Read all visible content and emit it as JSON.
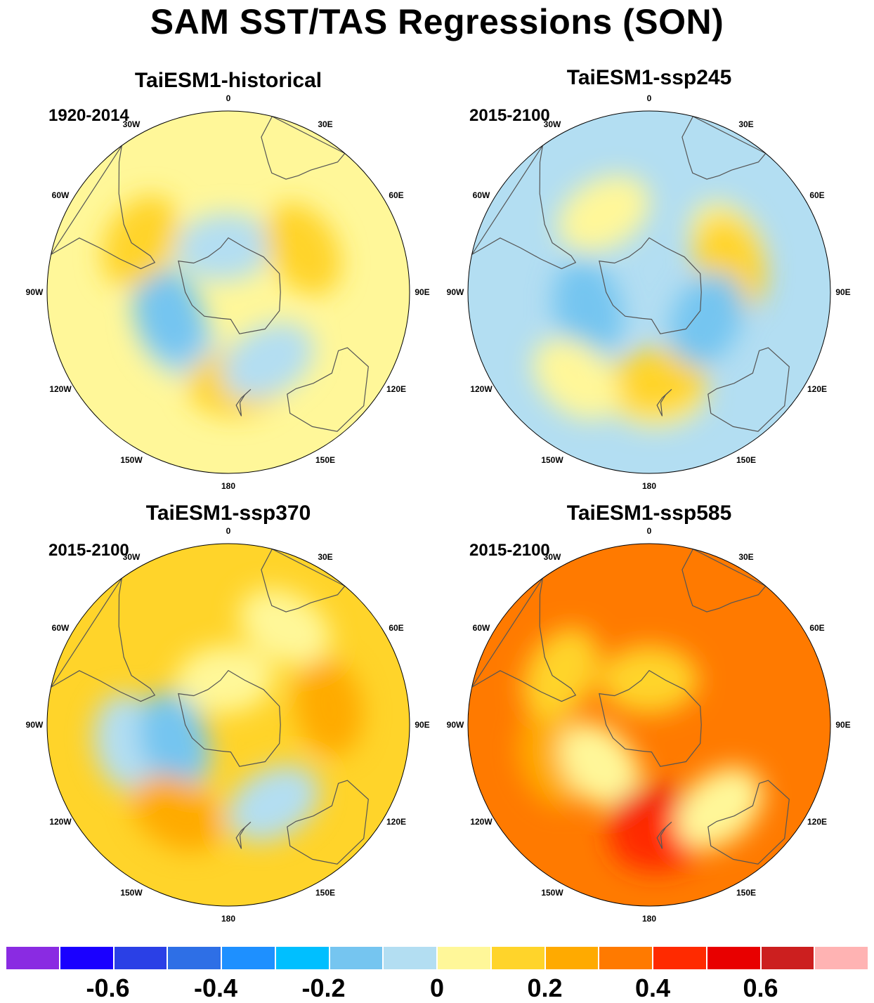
{
  "title": "SAM SST/TAS Regressions (SON)",
  "panels": [
    {
      "model": "TaiESM1-historical",
      "period": "1920-2014",
      "base_color": "#fff799",
      "blobs": [
        {
          "lat": 70,
          "lon": -5,
          "color": "#b3def2"
        },
        {
          "lat": 60,
          "lon": -130,
          "color": "#b3def2"
        },
        {
          "lat": 62,
          "lon": -110,
          "color": "#75c5f0"
        },
        {
          "lat": 52,
          "lon": 60,
          "color": "#ffd42a"
        },
        {
          "lat": 50,
          "lon": 175,
          "color": "#ffd42a"
        },
        {
          "lat": 45,
          "lon": -60,
          "color": "#ffd42a"
        },
        {
          "lat": 55,
          "lon": 150,
          "color": "#b3def2"
        }
      ]
    },
    {
      "model": "TaiESM1-ssp245",
      "period": "2015-2100",
      "base_color": "#b3def2",
      "blobs": [
        {
          "lat": 50,
          "lon": -30,
          "color": "#fff799"
        },
        {
          "lat": 45,
          "lon": 175,
          "color": "#fff799"
        },
        {
          "lat": 50,
          "lon": 175,
          "color": "#ffd42a"
        },
        {
          "lat": 50,
          "lon": 60,
          "color": "#fff799"
        },
        {
          "lat": 52,
          "lon": 70,
          "color": "#ffd42a"
        },
        {
          "lat": 62,
          "lon": -105,
          "color": "#75c5f0"
        },
        {
          "lat": 62,
          "lon": 115,
          "color": "#75c5f0"
        },
        {
          "lat": 40,
          "lon": -140,
          "color": "#fff799"
        }
      ]
    },
    {
      "model": "TaiESM1-ssp370",
      "period": "2015-2100",
      "base_color": "#ffd42a",
      "blobs": [
        {
          "lat": 70,
          "lon": -5,
          "color": "#fff799"
        },
        {
          "lat": 40,
          "lon": 30,
          "color": "#fff799"
        },
        {
          "lat": 45,
          "lon": -100,
          "color": "#b3def2"
        },
        {
          "lat": 65,
          "lon": -110,
          "color": "#b3def2"
        },
        {
          "lat": 65,
          "lon": -105,
          "color": "#75c5f0"
        },
        {
          "lat": 50,
          "lon": 150,
          "color": "#b3def2"
        },
        {
          "lat": 45,
          "lon": -150,
          "color": "#ffaa00"
        },
        {
          "lat": 45,
          "lon": 80,
          "color": "#ffaa00"
        }
      ]
    },
    {
      "model": "TaiESM1-ssp585",
      "period": "2015-2100",
      "base_color": "#ff7a00",
      "blobs": [
        {
          "lat": 45,
          "lon": -110,
          "color": "#ffaa00"
        },
        {
          "lat": 62,
          "lon": -130,
          "color": "#fff799"
        },
        {
          "lat": 70,
          "lon": 0,
          "color": "#ffd42a"
        },
        {
          "lat": 48,
          "lon": 175,
          "color": "#e80000"
        },
        {
          "lat": 40,
          "lon": 175,
          "color": "#ff2a00"
        },
        {
          "lat": 45,
          "lon": -60,
          "color": "#ffd42a"
        },
        {
          "lat": 42,
          "lon": 140,
          "color": "#fff799"
        }
      ]
    }
  ],
  "lon_labels": [
    "0",
    "30E",
    "60E",
    "90E",
    "120E",
    "150E",
    "180",
    "150W",
    "120W",
    "90W",
    "60W",
    "30W"
  ],
  "colorbar": {
    "colors": [
      "#8a2be2",
      "#1a00ff",
      "#2a40e6",
      "#2e6fe6",
      "#1e90ff",
      "#00bfff",
      "#75c5f0",
      "#b3def2",
      "#fff799",
      "#ffd42a",
      "#ffaa00",
      "#ff7a00",
      "#ff2a00",
      "#e80000",
      "#cc1f1f",
      "#ffb3b3"
    ],
    "labels": [
      "-0.6",
      "-0.4",
      "-0.2",
      "0",
      "0.2",
      "0.4",
      "0.6"
    ]
  }
}
